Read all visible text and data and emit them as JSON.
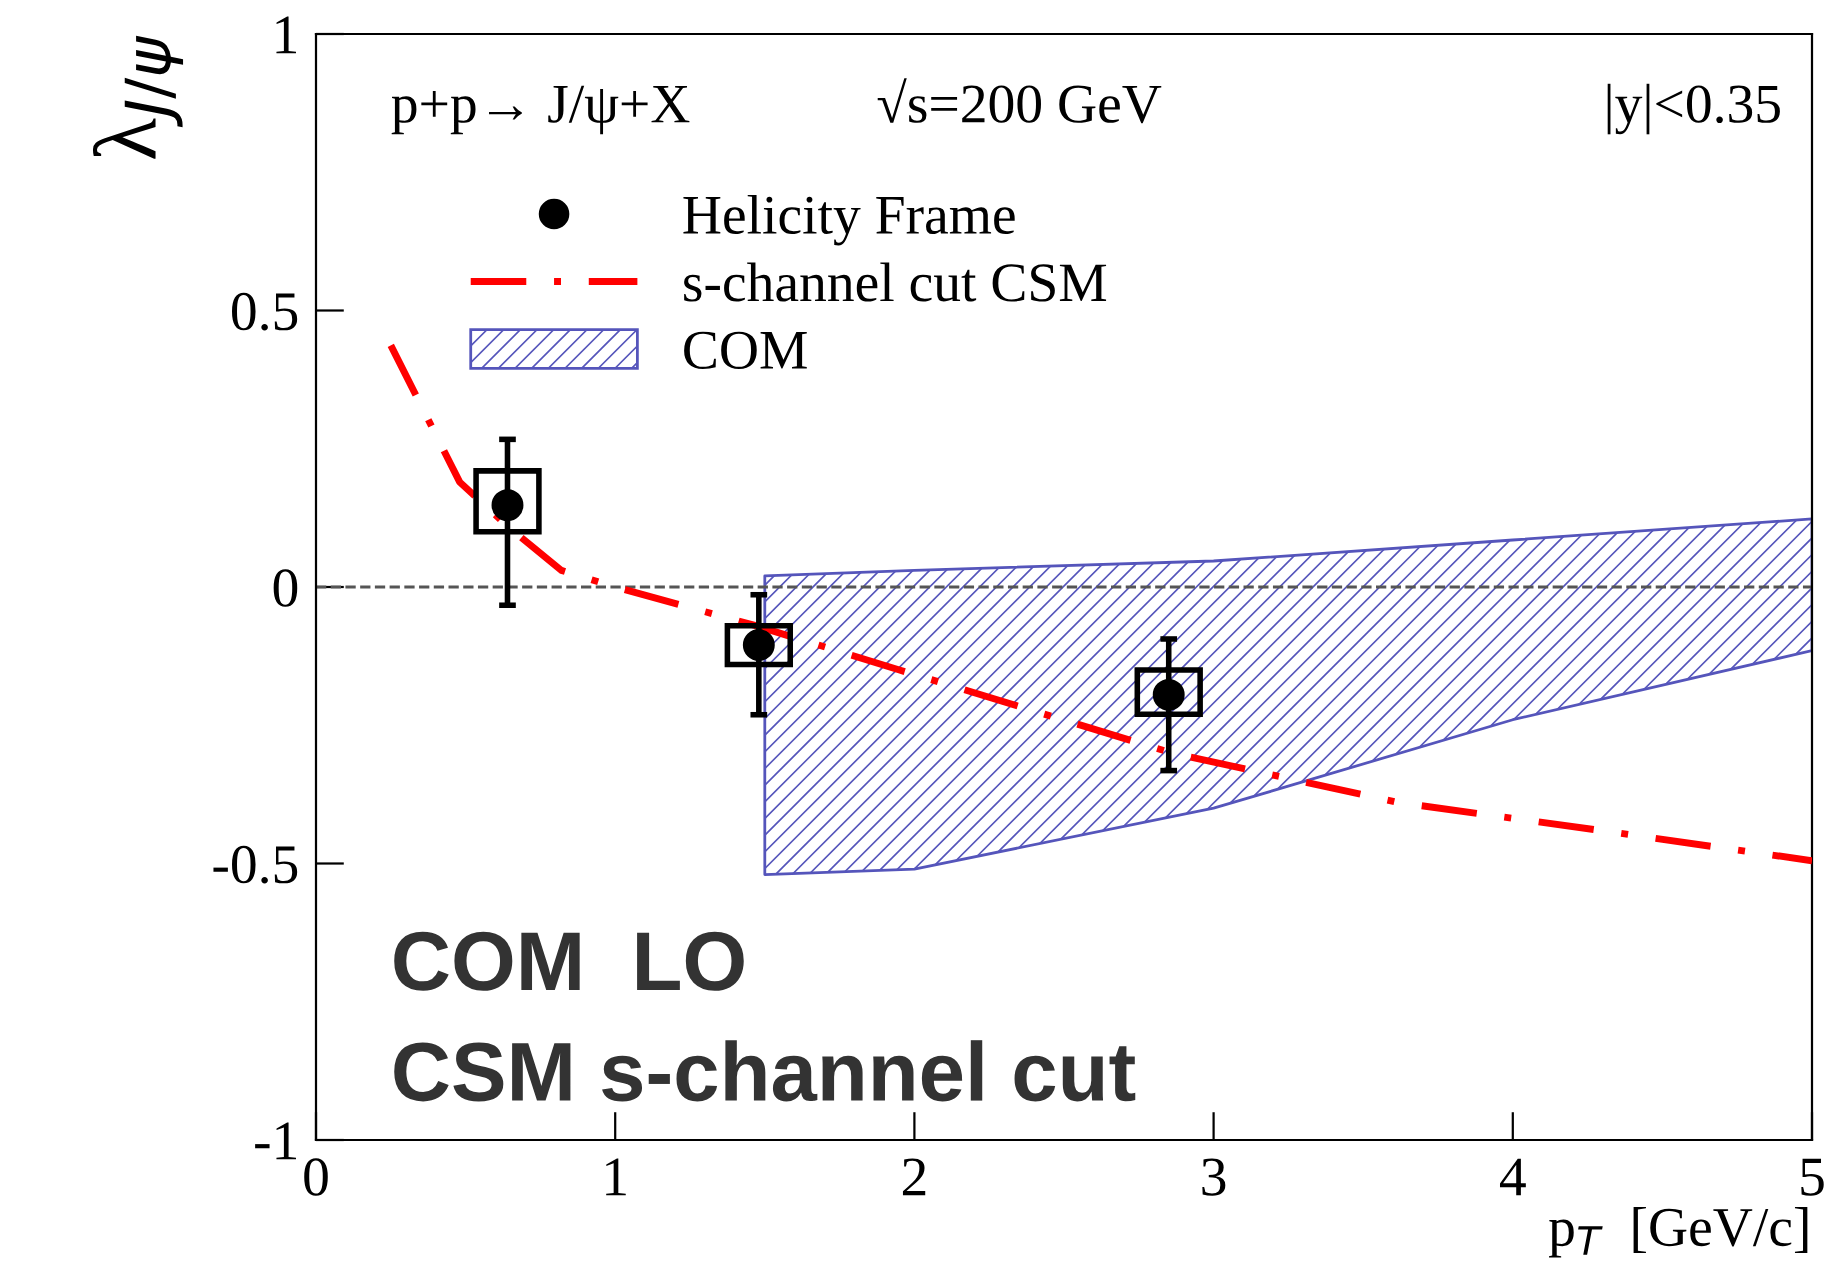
{
  "chart_data": {
    "type": "scatter",
    "xlabel": "p$_{T}$  [GeV/c]",
    "ylabel": "λ$_{J/ψ}$",
    "annotations": [
      "p+p→ J/ψ+X",
      "√s=200 GeV",
      "|y|<0.35",
      "COM  LO",
      "CSM s-channel cut"
    ],
    "xlim": [
      0,
      5
    ],
    "ylim": [
      -1,
      1
    ],
    "xticks": [
      0,
      1,
      2,
      3,
      4,
      5
    ],
    "yticks": [
      -1,
      -0.5,
      0,
      0.5,
      1
    ],
    "grid": false,
    "legend": "top left",
    "ref_lines": [
      {
        "axis": "y",
        "value": 0,
        "color": "#555555",
        "line_style": "dashed"
      }
    ],
    "series": [
      {
        "name": "Helicity Frame",
        "marker": "circle",
        "color": "#000000",
        "x": [
          0.64,
          1.48,
          2.85
        ],
        "values": [
          0.148,
          -0.105,
          -0.195
        ],
        "errors": [
          [
            -0.033,
            0.267
          ],
          [
            -0.231,
            -0.014
          ],
          [
            -0.332,
            -0.094
          ]
        ]
      },
      {
        "type": "bar",
        "color": "#000000",
        "x": [
          0.64,
          1.48,
          2.85
        ],
        "base": [
          0.1,
          -0.14,
          -0.23
        ],
        "values": [
          0.11,
          0.07,
          0.08
        ]
      },
      {
        "name": "s-channel cut CSM",
        "type": "line",
        "line_style": "dashdot",
        "color": "#ff0000",
        "x": [
          0.25,
          0.48,
          0.64,
          0.82,
          1.0,
          1.47,
          1.95,
          2.86,
          3.62,
          4.29,
          5.0
        ],
        "values": [
          0.437,
          0.19,
          0.11,
          0.03,
          0.0,
          -0.07,
          -0.15,
          -0.3,
          -0.39,
          -0.44,
          -0.495
        ]
      },
      {
        "name": "COM",
        "type": "area",
        "color": "#5555bb",
        "x": [
          1.5,
          2,
          3,
          4,
          5
        ],
        "values": [
          null,
          null,
          null,
          null,
          null
        ],
        "upper": [
          0.02,
          0.03,
          0.047,
          0.085,
          0.123
        ],
        "lower": [
          -0.52,
          -0.51,
          -0.4,
          -0.24,
          -0.115
        ]
      }
    ]
  }
}
